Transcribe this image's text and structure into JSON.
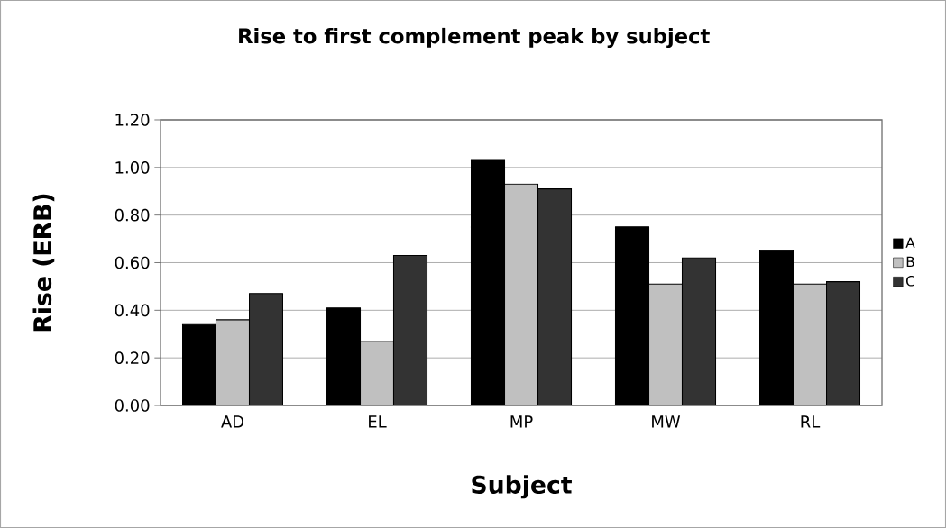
{
  "chart_data": {
    "type": "bar",
    "title": "Rise to first complement peak by subject",
    "xlabel": "Subject",
    "ylabel": "Rise (ERB)",
    "categories": [
      "AD",
      "EL",
      "MP",
      "MW",
      "RL"
    ],
    "series": [
      {
        "name": "A",
        "color": "#000000",
        "values": [
          0.34,
          0.41,
          1.03,
          0.75,
          0.65
        ]
      },
      {
        "name": "B",
        "color": "#c0c0c0",
        "values": [
          0.36,
          0.27,
          0.93,
          0.51,
          0.51
        ]
      },
      {
        "name": "C",
        "color": "#333333",
        "values": [
          0.47,
          0.63,
          0.91,
          0.62,
          0.52
        ]
      }
    ],
    "ylim": [
      0,
      1.2
    ],
    "yticks": [
      {
        "value": 0,
        "label": "0.00"
      },
      {
        "value": 0.2,
        "label": "0.20"
      },
      {
        "value": 0.4,
        "label": "0.40"
      },
      {
        "value": 0.6,
        "label": "0.60"
      },
      {
        "value": 0.8,
        "label": "0.80"
      },
      {
        "value": 1.0,
        "label": "1.00"
      },
      {
        "value": 1.2,
        "label": "1.20"
      }
    ],
    "grid": "y",
    "legend": "right"
  }
}
